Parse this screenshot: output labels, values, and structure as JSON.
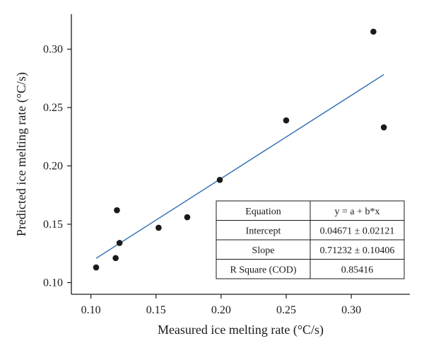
{
  "chart_data": {
    "type": "scatter",
    "xlabel": "Measured ice melting rate (°C/s)",
    "ylabel": "Predicted ice melting rate (°C/s)",
    "xlim": [
      0.085,
      0.345
    ],
    "ylim": [
      0.09,
      0.33
    ],
    "x_ticks": [
      "0.10",
      "0.15",
      "0.20",
      "0.25",
      "0.30"
    ],
    "y_ticks": [
      "0.10",
      "0.15",
      "0.20",
      "0.25",
      "0.30"
    ],
    "grid": false,
    "series": [
      {
        "points": [
          {
            "x": 0.104,
            "y": 0.113
          },
          {
            "x": 0.119,
            "y": 0.121
          },
          {
            "x": 0.12,
            "y": 0.162
          },
          {
            "x": 0.122,
            "y": 0.134
          },
          {
            "x": 0.152,
            "y": 0.147
          },
          {
            "x": 0.174,
            "y": 0.156
          },
          {
            "x": 0.199,
            "y": 0.188
          },
          {
            "x": 0.25,
            "y": 0.239
          },
          {
            "x": 0.317,
            "y": 0.315
          },
          {
            "x": 0.325,
            "y": 0.233
          }
        ],
        "color": "#1a1a1a"
      }
    ],
    "fit_line": {
      "intercept": 0.04671,
      "slope": 0.71232,
      "x_range": [
        0.104,
        0.325
      ],
      "color": "#2b6cb0"
    },
    "stats_table": {
      "rows": [
        [
          "Equation",
          "y = a + b*x"
        ],
        [
          "Intercept",
          "0.04671 ± 0.02121"
        ],
        [
          "Slope",
          "0.71232 ± 0.10406"
        ],
        [
          "R Square (COD)",
          "0.85416"
        ]
      ]
    }
  }
}
